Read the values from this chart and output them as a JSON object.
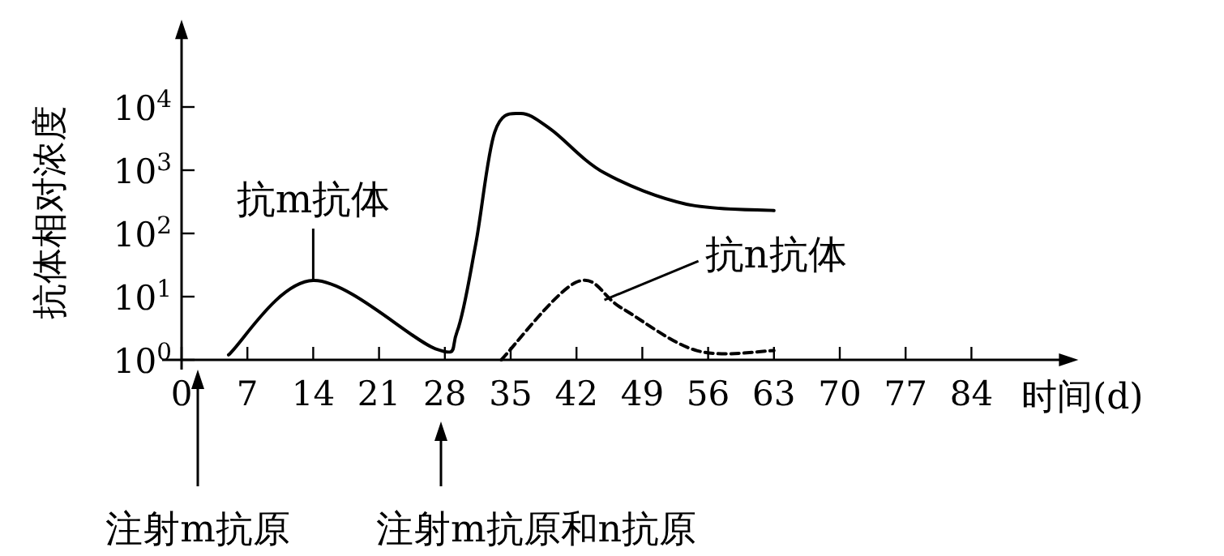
{
  "chart_data": {
    "type": "line",
    "xlabel": "时间(d)",
    "ylabel": "抗体相对浓度",
    "log": "y",
    "xlim": [
      0,
      94
    ],
    "ylim": [
      1,
      150000
    ],
    "xticks": [
      0,
      7,
      14,
      21,
      28,
      35,
      42,
      49,
      56,
      63,
      70,
      77,
      84
    ],
    "yticks": [
      {
        "value": 1,
        "label": "10$^{0}$"
      },
      {
        "value": 10,
        "label": "10$^{1}$"
      },
      {
        "value": 100,
        "label": "10$^{2}$"
      },
      {
        "value": 1000,
        "label": "10$^{3}$"
      },
      {
        "value": 10000,
        "label": "10$^{4}$"
      }
    ],
    "series": [
      {
        "color": "#000000",
        "line_style": "solid",
        "x": [
          5,
          14,
          27,
          29.3,
          31.3,
          33.3,
          36,
          39.3,
          45,
          53.7,
          63
        ],
        "values": [
          1.2,
          18,
          1.5,
          2.8,
          70,
          4000,
          7900,
          4400,
          900,
          290,
          230
        ]
      },
      {
        "color": "#000000",
        "line_style": "dashed",
        "x": [
          34,
          42,
          46.8,
          54.8,
          63
        ],
        "values": [
          1,
          17,
          6.6,
          1.4,
          1.4
        ]
      }
    ],
    "annotations": [
      {
        "text": "抗m抗体",
        "x": 14,
        "y": 18
      },
      {
        "text": "抗n抗体",
        "x": 46,
        "y": 7
      },
      "注射m抗原",
      "注射m抗原和n抗原"
    ]
  }
}
